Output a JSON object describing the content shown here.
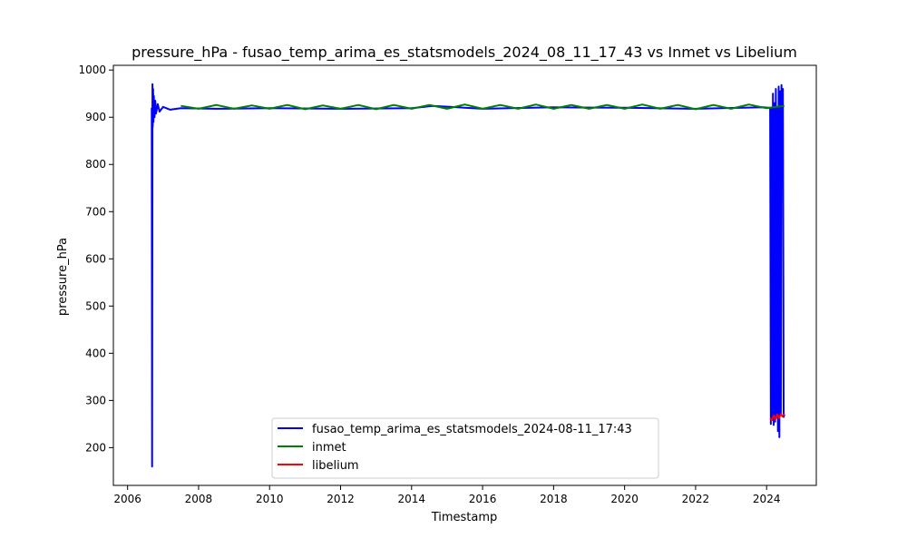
{
  "chart_data": {
    "type": "line",
    "title": "pressure_hPa - fusao_temp_arima_es_statsmodels_2024_08_11_17_43 vs Inmet vs Libelium",
    "xlabel": "Timestamp",
    "ylabel": "pressure_hPa",
    "xlim": [
      2005.6,
      2025.4
    ],
    "ylim": [
      120,
      1010
    ],
    "x_ticks": [
      2006,
      2008,
      2010,
      2012,
      2014,
      2016,
      2018,
      2020,
      2022,
      2024
    ],
    "y_ticks": [
      200,
      300,
      400,
      500,
      600,
      700,
      800,
      900,
      1000
    ],
    "grid": false,
    "legend_position": "lower-center",
    "series": [
      {
        "name": "fusao_temp_arima_es_statsmodels_2024-08-11_17:43",
        "color": "#0000ff",
        "x": [
          2006.68,
          2006.69,
          2006.7,
          2006.71,
          2006.72,
          2006.73,
          2006.74,
          2006.76,
          2006.78,
          2006.8,
          2006.85,
          2006.9,
          2007.0,
          2007.2,
          2007.5,
          2008.5,
          2010.0,
          2012.0,
          2014.0,
          2014.6,
          2016.0,
          2018.0,
          2020.0,
          2022.0,
          2023.9,
          2024.05,
          2024.1,
          2024.12,
          2024.14,
          2024.16,
          2024.18,
          2024.2,
          2024.22,
          2024.24,
          2024.26,
          2024.28,
          2024.3,
          2024.32,
          2024.34,
          2024.36,
          2024.38,
          2024.4,
          2024.42,
          2024.44,
          2024.46,
          2024.48,
          2024.5
        ],
        "y": [
          920,
          160,
          970,
          880,
          960,
          890,
          945,
          900,
          935,
          908,
          928,
          912,
          922,
          916,
          919,
          918,
          919,
          918,
          919,
          924,
          918,
          921,
          920,
          918,
          921,
          920,
          920,
          250,
          920,
          260,
          950,
          248,
          930,
          255,
          960,
          265,
          920,
          235,
          965,
          222,
          955,
          270,
          968,
          900,
          960,
          265,
          270
        ]
      },
      {
        "name": "inmet",
        "color": "#008000",
        "x": [
          2007.5,
          2008.0,
          2008.5,
          2009.0,
          2009.5,
          2010.0,
          2010.5,
          2011.0,
          2011.5,
          2012.0,
          2012.5,
          2013.0,
          2013.5,
          2014.0,
          2014.5,
          2015.0,
          2015.5,
          2016.0,
          2016.5,
          2017.0,
          2017.5,
          2018.0,
          2018.5,
          2019.0,
          2019.5,
          2020.0,
          2020.5,
          2021.0,
          2021.5,
          2022.0,
          2022.5,
          2023.0,
          2023.5,
          2024.0,
          2024.5
        ],
        "y": [
          924,
          918,
          926,
          918,
          925,
          918,
          926,
          917,
          925,
          918,
          926,
          917,
          926,
          918,
          926,
          918,
          927,
          918,
          926,
          918,
          927,
          918,
          926,
          918,
          926,
          918,
          927,
          918,
          926,
          917,
          926,
          918,
          927,
          919,
          924
        ]
      },
      {
        "name": "libelium",
        "color": "#ff0000",
        "x": [
          2024.1,
          2024.15,
          2024.2,
          2024.25,
          2024.3,
          2024.35,
          2024.4,
          2024.45,
          2024.5
        ],
        "y": [
          262,
          258,
          268,
          260,
          270,
          263,
          271,
          266,
          272
        ]
      }
    ]
  }
}
